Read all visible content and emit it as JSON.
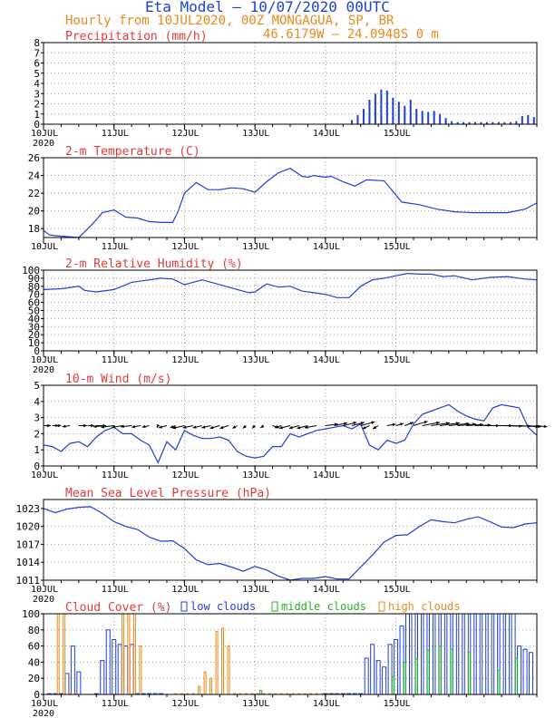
{
  "header": {
    "title": "Eta Model — 10/07/2020 00UTC",
    "subtitle": "Hourly from 10JUL2020, 00Z  MONGAGUA, SP, BR",
    "coords": "46.6179W — 24.0948S         0  m"
  },
  "colors": {
    "blue": "#1f3fd8",
    "red": "#e23a3a",
    "orange": "#e88a1a",
    "green": "#22b422",
    "teal": "#3aa0a0",
    "axis": "#000000",
    "grid": "#9a9a9a"
  },
  "chart_data": [
    {
      "type": "bar",
      "title": "Precipitation (mm/h)",
      "xlabel": "",
      "ylabel": "",
      "x_ticks": [
        "10JUL",
        "11JUL",
        "12JUL",
        "13JUL",
        "14JUL",
        "15JUL"
      ],
      "year_label": "2020",
      "ylim": [
        0,
        8
      ],
      "y_ticks": [
        0,
        1,
        2,
        3,
        4,
        5,
        6,
        7,
        8
      ],
      "x": [
        105,
        107,
        109,
        111,
        113,
        115,
        117,
        119,
        121,
        123,
        125,
        127,
        129,
        131,
        133,
        135,
        137,
        139,
        141,
        143,
        145,
        147,
        149,
        151,
        153,
        155,
        157,
        159,
        161,
        163,
        165,
        167
      ],
      "values": [
        0.4,
        0.9,
        1.5,
        2.4,
        3.0,
        3.4,
        3.3,
        2.6,
        2.2,
        1.8,
        2.4,
        1.5,
        1.3,
        1.2,
        1.3,
        1.0,
        0.6,
        0.3,
        0.2,
        0.2,
        0.2,
        0.2,
        0.2,
        0.2,
        0.2,
        0.2,
        0.2,
        0.2,
        0.3,
        0.8,
        0.9,
        0.7
      ]
    },
    {
      "type": "line",
      "title": "2-m Temperature (C)",
      "xlabel": "",
      "ylabel": "",
      "x_ticks": [
        "10JUL",
        "11JUL",
        "12JUL",
        "13JUL",
        "14JUL",
        "15JUL"
      ],
      "year_label": "",
      "ylim": [
        17,
        26
      ],
      "y_ticks": [
        18,
        20,
        22,
        24,
        26
      ],
      "x": [
        0,
        2,
        4,
        8,
        12,
        16,
        18,
        20,
        24,
        28,
        32,
        36,
        40,
        44,
        46,
        48,
        52,
        56,
        60,
        64,
        68,
        72,
        76,
        80,
        84,
        88,
        90,
        92,
        96,
        98,
        102,
        106,
        110,
        116,
        122,
        128,
        134,
        140,
        146,
        152,
        158,
        164,
        168
      ],
      "values": [
        17.8,
        17.3,
        17.2,
        17.1,
        17.0,
        18.3,
        19.0,
        19.8,
        20.1,
        19.3,
        19.2,
        18.8,
        18.7,
        18.7,
        20.1,
        22.0,
        23.2,
        22.4,
        22.4,
        22.6,
        22.5,
        22.1,
        23.3,
        24.3,
        24.8,
        23.9,
        23.8,
        24.0,
        23.8,
        23.9,
        23.3,
        22.8,
        23.5,
        23.4,
        21.0,
        20.7,
        20.2,
        19.9,
        19.8,
        19.8,
        19.8,
        20.2,
        20.9
      ]
    },
    {
      "type": "line",
      "title": "2-m Relative Humidity (%)",
      "xlabel": "",
      "ylabel": "",
      "x_ticks": [
        "10JUL",
        "11JUL",
        "12JUL",
        "13JUL",
        "14JUL",
        "15JUL"
      ],
      "year_label": "2020",
      "ylim": [
        0,
        100
      ],
      "y_ticks": [
        0,
        10,
        20,
        30,
        40,
        50,
        60,
        70,
        80,
        90,
        100
      ],
      "x": [
        0,
        6,
        12,
        14,
        18,
        24,
        30,
        36,
        40,
        44,
        48,
        54,
        58,
        62,
        66,
        70,
        72,
        76,
        80,
        84,
        88,
        92,
        96,
        100,
        104,
        108,
        112,
        116,
        120,
        124,
        128,
        132,
        136,
        140,
        146,
        152,
        158,
        164,
        168
      ],
      "values": [
        76,
        77,
        80,
        75,
        73,
        76,
        85,
        88,
        90,
        89,
        82,
        88,
        84,
        80,
        76,
        72,
        73,
        83,
        79,
        80,
        74,
        72,
        70,
        66,
        66,
        80,
        88,
        90,
        93,
        96,
        95,
        95,
        92,
        93,
        88,
        91,
        92,
        89,
        88
      ]
    },
    {
      "type": "line",
      "title": "10-m Wind (m/s)",
      "xlabel": "",
      "ylabel": "",
      "x_ticks": [
        "10JUL",
        "11JUL",
        "12JUL",
        "13JUL",
        "14JUL",
        "15JUL"
      ],
      "year_label": "",
      "ylim": [
        0,
        5
      ],
      "y_ticks": [
        0,
        1,
        2,
        3,
        4,
        5
      ],
      "x": [
        0,
        3,
        6,
        9,
        12,
        15,
        18,
        21,
        24,
        27,
        30,
        33,
        36,
        39,
        42,
        45,
        48,
        51,
        54,
        57,
        60,
        63,
        66,
        69,
        72,
        75,
        78,
        81,
        84,
        87,
        90,
        93,
        96,
        99,
        102,
        105,
        108,
        111,
        114,
        117,
        120,
        123,
        126,
        129,
        132,
        135,
        138,
        141,
        144,
        147,
        150,
        153,
        156,
        159,
        162,
        165,
        168
      ],
      "values": [
        1.3,
        1.2,
        0.9,
        1.4,
        1.5,
        1.2,
        1.8,
        2.2,
        2.4,
        2.0,
        2.0,
        1.6,
        1.3,
        0.2,
        1.5,
        1.0,
        2.2,
        1.9,
        1.7,
        1.7,
        1.8,
        1.6,
        0.9,
        0.6,
        0.5,
        0.6,
        1.2,
        1.2,
        2.0,
        1.8,
        2.0,
        2.2,
        2.3,
        2.4,
        2.5,
        2.3,
        2.6,
        1.3,
        1.0,
        1.6,
        1.4,
        1.6,
        2.6,
        3.2,
        3.4,
        3.6,
        3.8,
        3.4,
        3.1,
        2.9,
        2.8,
        3.6,
        3.8,
        3.7,
        3.6,
        2.4,
        1.9
      ],
      "vectors_x": [
        0,
        3,
        6,
        9,
        12,
        15,
        18,
        21,
        24,
        27,
        30,
        33,
        36,
        39,
        42,
        45,
        48,
        51,
        54,
        57,
        60,
        63,
        66,
        69,
        72,
        75,
        78,
        81,
        84,
        87,
        90,
        93,
        96,
        99,
        102,
        105,
        108,
        111,
        114,
        117,
        120,
        123,
        126,
        129,
        132,
        135,
        138,
        141,
        144,
        147,
        150,
        153,
        156,
        159,
        162,
        165,
        168
      ],
      "vectors_u": [
        1.3,
        1.2,
        -0.9,
        -1.4,
        1.5,
        1.2,
        1.8,
        -2.2,
        -2.4,
        -2.0,
        -2.0,
        -1.6,
        -1.3,
        -0.2,
        -1.5,
        -1.0,
        -2.2,
        -1.9,
        -1.7,
        -1.7,
        -1.8,
        -1.6,
        -0.9,
        -0.6,
        -0.5,
        -0.6,
        1.2,
        -1.2,
        -2.0,
        -1.8,
        -2.0,
        -2.2,
        2.3,
        2.4,
        2.5,
        2.3,
        2.6,
        -1.3,
        -1.0,
        1.6,
        1.4,
        1.6,
        2.6,
        3.2,
        3.4,
        3.6,
        3.8,
        3.4,
        3.1,
        2.9,
        2.8,
        3.6,
        3.8,
        3.7,
        3.6,
        2.4,
        1.9
      ],
      "vectors_v": [
        0,
        0,
        0,
        -0.2,
        0,
        0,
        0,
        -0.2,
        -0.3,
        -0.3,
        -0.2,
        -0.3,
        -0.3,
        -0.4,
        -0.4,
        -0.4,
        -0.5,
        -0.4,
        -0.4,
        -0.4,
        -0.5,
        -0.5,
        -0.5,
        -0.5,
        -0.5,
        -0.4,
        -0.4,
        -0.4,
        -0.5,
        -0.5,
        -0.5,
        -0.4,
        0.3,
        0.5,
        0.6,
        0.6,
        0.7,
        -0.6,
        -0.6,
        0.3,
        0.4,
        0.6,
        0.8,
        0.6,
        0.5,
        0.5,
        0.4,
        0.3,
        0.2,
        0.1,
        0,
        0,
        -0.1,
        -0.1,
        -0.2,
        -0.2,
        -0.2
      ]
    },
    {
      "type": "line",
      "title": "Mean Sea Level Pressure (hPa)",
      "xlabel": "",
      "ylabel": "",
      "x_ticks": [
        "10JUL",
        "11JUL",
        "12JUL",
        "13JUL",
        "14JUL",
        "15JUL"
      ],
      "year_label": "2020",
      "ylim": [
        1011,
        1024.5
      ],
      "y_ticks": [
        1011,
        1014,
        1017,
        1020,
        1023
      ],
      "x": [
        0,
        4,
        8,
        12,
        16,
        20,
        24,
        28,
        32,
        36,
        40,
        44,
        48,
        52,
        56,
        60,
        64,
        68,
        72,
        76,
        80,
        84,
        88,
        92,
        96,
        100,
        104,
        108,
        112,
        116,
        120,
        124,
        128,
        132,
        136,
        140,
        144,
        148,
        152,
        156,
        160,
        164,
        168
      ],
      "values": [
        1023.0,
        1022.3,
        1022.9,
        1023.2,
        1023.3,
        1022.2,
        1020.8,
        1020.0,
        1019.5,
        1018.2,
        1017.5,
        1017.6,
        1016.3,
        1014.4,
        1013.6,
        1013.8,
        1013.2,
        1012.5,
        1013.3,
        1012.7,
        1011.7,
        1011.0,
        1011.3,
        1011.3,
        1011.6,
        1011.2,
        1011.2,
        1013.2,
        1015.2,
        1017.4,
        1018.5,
        1018.6,
        1020.0,
        1021.1,
        1020.8,
        1020.6,
        1021.2,
        1021.6,
        1020.8,
        1019.9,
        1019.8,
        1020.4,
        1020.6
      ]
    },
    {
      "type": "bar",
      "title": "Cloud Cover (%)",
      "xlabel": "",
      "ylabel": "",
      "x_ticks": [
        "10JUL",
        "11JUL",
        "12JUL",
        "13JUL",
        "14JUL",
        "15JUL"
      ],
      "year_label": "2020",
      "legend": [
        "low clouds",
        "middle clouds",
        "high clouds"
      ],
      "legend_position": "top",
      "ylim": [
        0,
        100
      ],
      "y_ticks": [
        0,
        20,
        40,
        60,
        80,
        100
      ],
      "series": [
        {
          "name": "low clouds",
          "x": [
            2,
            4,
            6,
            8,
            10,
            12,
            18,
            20,
            22,
            24,
            26,
            28,
            30,
            32,
            34,
            36,
            38,
            40,
            96,
            98,
            100,
            102,
            104,
            106,
            108,
            110,
            112,
            114,
            116,
            118,
            120,
            122,
            124,
            126,
            128,
            130,
            132,
            134,
            136,
            138,
            140,
            142,
            144,
            146,
            148,
            150,
            152,
            154,
            156,
            158,
            160,
            162,
            164,
            166
          ],
          "values": [
            1,
            1,
            1,
            26,
            60,
            28,
            1,
            42,
            80,
            68,
            62,
            60,
            62,
            1,
            1,
            1,
            1,
            1,
            1,
            1,
            1,
            1,
            1,
            1,
            1,
            45,
            62,
            42,
            34,
            62,
            68,
            85,
            100,
            100,
            100,
            100,
            100,
            100,
            100,
            100,
            100,
            100,
            100,
            100,
            100,
            100,
            100,
            100,
            100,
            100,
            100,
            60,
            56,
            52
          ]
        },
        {
          "name": "middle clouds",
          "x": [
            74,
            119,
            123,
            127,
            131,
            135,
            139,
            145,
            155,
            161
          ],
          "values": [
            5,
            22,
            40,
            44,
            55,
            60,
            56,
            52,
            30,
            45
          ]
        },
        {
          "name": "high clouds",
          "x": [
            5,
            7,
            9,
            11,
            27,
            29,
            31,
            33,
            45,
            47,
            49,
            51,
            53,
            55,
            57,
            59,
            61,
            63,
            65,
            67,
            69,
            71,
            73,
            75,
            77,
            79,
            81,
            83,
            85,
            87,
            89,
            91,
            93,
            95,
            97,
            99
          ],
          "values": [
            100,
            100,
            1,
            1,
            100,
            100,
            100,
            60,
            1,
            1,
            1,
            1,
            10,
            28,
            20,
            78,
            82,
            60,
            1,
            1,
            1,
            1,
            1,
            1,
            1,
            1,
            1,
            1,
            1,
            1,
            1,
            1,
            1,
            1,
            1,
            1
          ]
        }
      ]
    }
  ]
}
